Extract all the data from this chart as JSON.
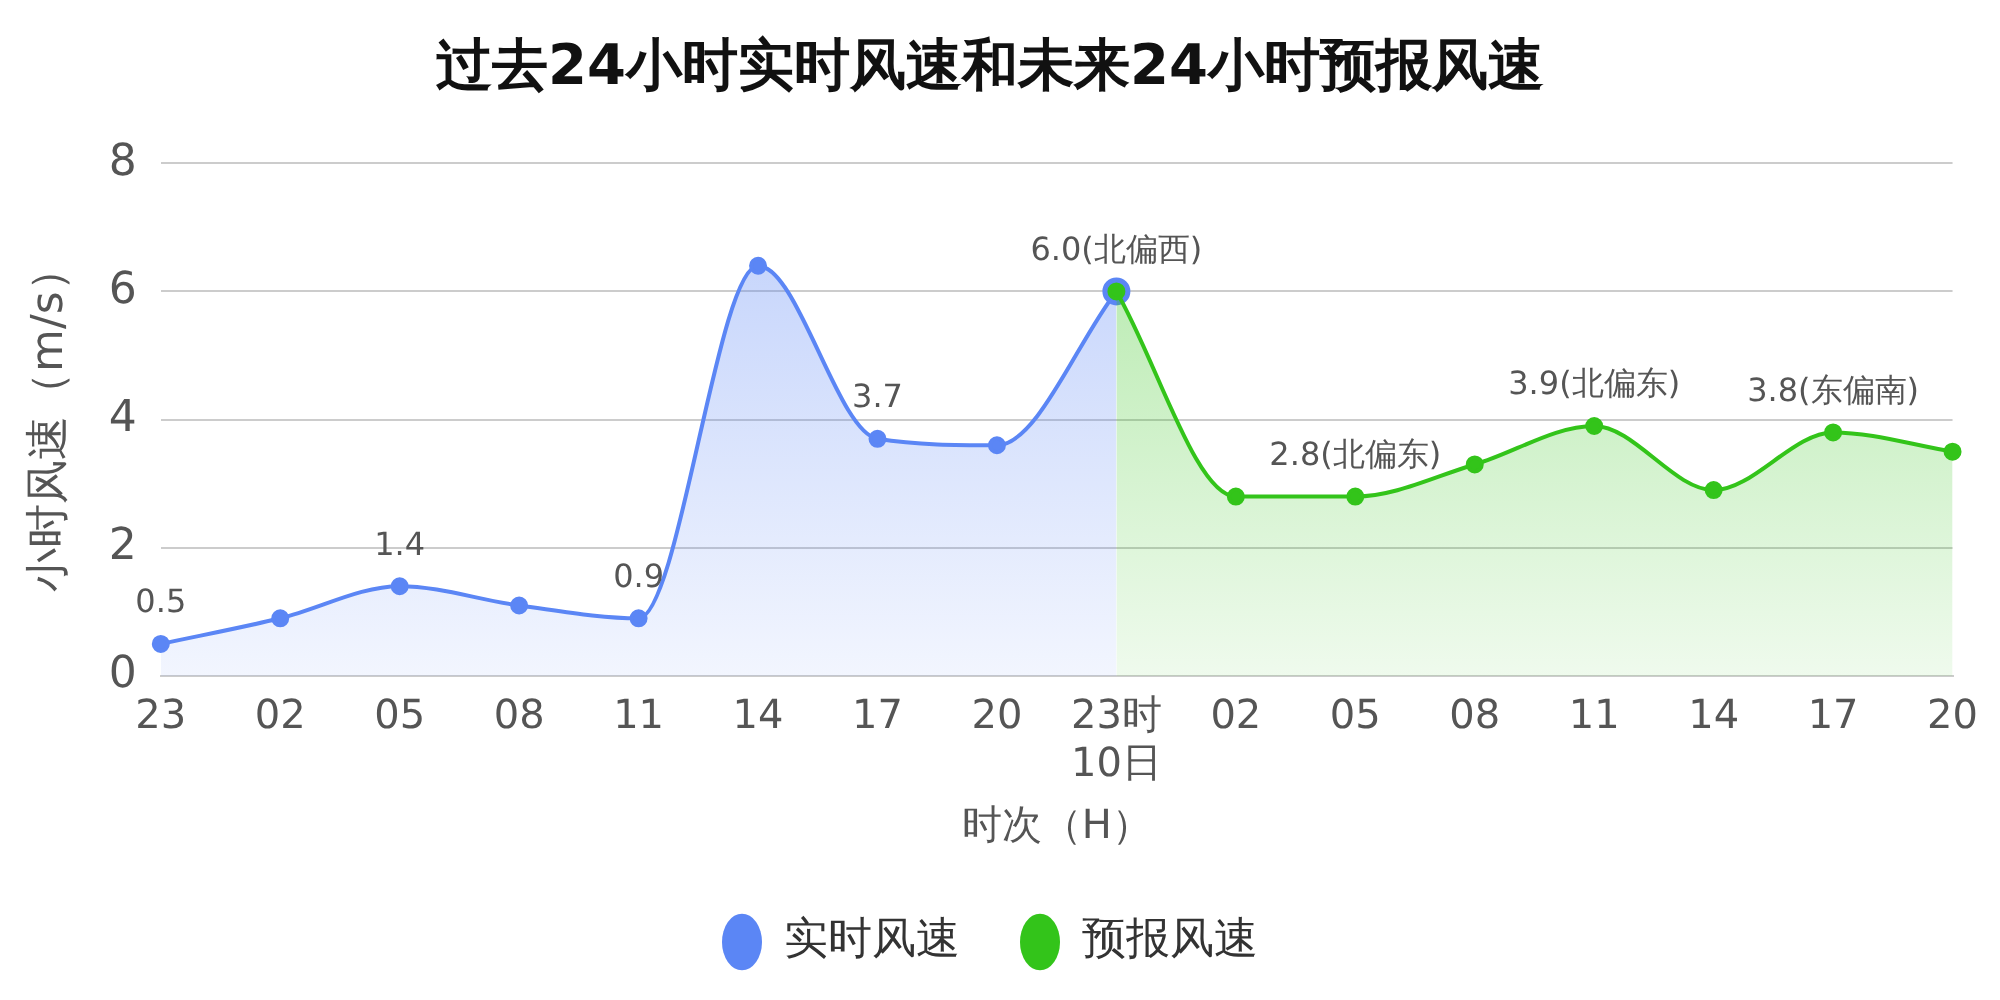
{
  "chart_data": {
    "type": "area",
    "title": "过去24小时实时风速和未来24小时预报风速",
    "xlabel": "时次（H）",
    "ylabel": "小时风速（m/s）",
    "categories": [
      "23",
      "02",
      "05",
      "08",
      "11",
      "14",
      "17",
      "20",
      "23时\n10日",
      "02",
      "05",
      "08",
      "11",
      "14",
      "17",
      "20"
    ],
    "series": [
      {
        "name": "实时风速",
        "color": "#5b86f5",
        "values": [
          0.5,
          0.9,
          1.4,
          1.1,
          0.9,
          6.4,
          3.7,
          3.6,
          6.0,
          null,
          null,
          null,
          null,
          null,
          null,
          null
        ],
        "value_labels": [
          "0.5",
          null,
          "1.4",
          null,
          "0.9",
          null,
          "3.7",
          null,
          "6.0(北偏西)",
          null,
          null,
          null,
          null,
          null,
          null,
          null
        ]
      },
      {
        "name": "预报风速",
        "color": "#33c41a",
        "values": [
          null,
          null,
          null,
          null,
          null,
          null,
          null,
          null,
          6.0,
          2.8,
          2.8,
          3.3,
          3.9,
          2.9,
          3.8,
          3.5
        ],
        "value_labels": [
          null,
          null,
          null,
          null,
          null,
          null,
          null,
          null,
          null,
          null,
          "2.8(北偏东)",
          null,
          "3.9(北偏东)",
          null,
          "3.8(东偏南)",
          null
        ]
      }
    ],
    "ylim": [
      0,
      8
    ],
    "yticks": [
      0,
      2,
      4,
      6,
      8
    ],
    "grid": "y",
    "legend": "bottom",
    "marker": "circle",
    "line_style": "solid"
  }
}
